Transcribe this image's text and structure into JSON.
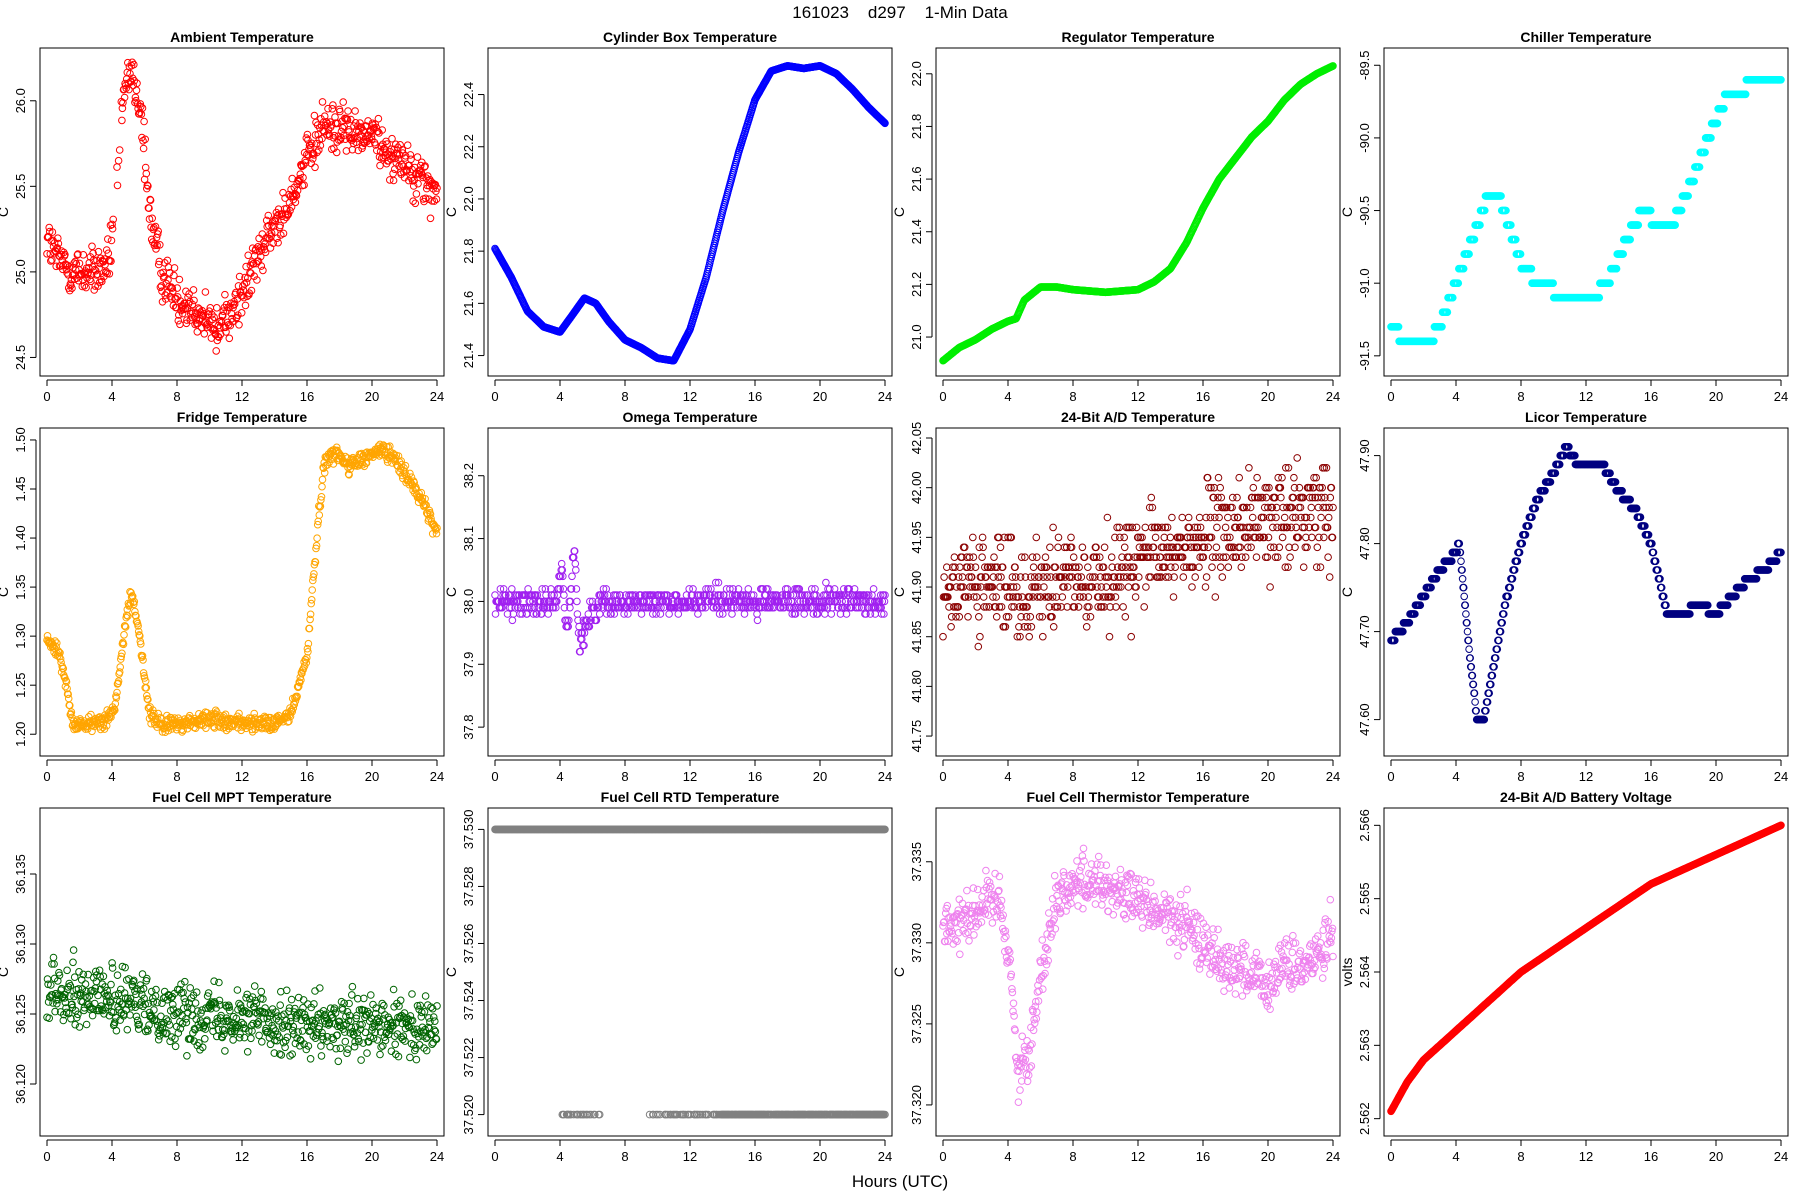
{
  "page": {
    "title": "161023    d297    1-Min Data",
    "xlabel": "Hours (UTC)"
  },
  "chart_data": [
    {
      "type": "scatter",
      "title": "Ambient Temperature",
      "ylabel": "C",
      "color": "#ff0000",
      "xlim": [
        0,
        24
      ],
      "ylim": [
        24.45,
        26.25
      ],
      "xticks": [
        0,
        4,
        8,
        12,
        16,
        20,
        24
      ],
      "yticks": [
        24.5,
        25.0,
        25.5,
        26.0
      ],
      "ytick_labels": [
        "24.5",
        "25.0",
        "25.5",
        "26.0"
      ],
      "noise": 0.1,
      "knots": [
        [
          0,
          25.2
        ],
        [
          0.5,
          25.1
        ],
        [
          1,
          25.05
        ],
        [
          1.5,
          25.0
        ],
        [
          2,
          25.0
        ],
        [
          3,
          25.0
        ],
        [
          3.8,
          25.05
        ],
        [
          4.1,
          25.3
        ],
        [
          4.6,
          25.9
        ],
        [
          4.9,
          26.1
        ],
        [
          5.2,
          26.15
        ],
        [
          5.6,
          26.0
        ],
        [
          5.9,
          25.8
        ],
        [
          6.4,
          25.3
        ],
        [
          7,
          25.0
        ],
        [
          8,
          24.85
        ],
        [
          9,
          24.8
        ],
        [
          10,
          24.7
        ],
        [
          10.5,
          24.65
        ],
        [
          11,
          24.75
        ],
        [
          12,
          24.85
        ],
        [
          13,
          25.1
        ],
        [
          14,
          25.25
        ],
        [
          15,
          25.45
        ],
        [
          16,
          25.65
        ],
        [
          17,
          25.85
        ],
        [
          18,
          25.85
        ],
        [
          19,
          25.8
        ],
        [
          20,
          25.8
        ],
        [
          21,
          25.7
        ],
        [
          22,
          25.65
        ],
        [
          23,
          25.55
        ],
        [
          24,
          25.45
        ]
      ],
      "gap": [
        4.1,
        4.7
      ]
    },
    {
      "type": "scatter",
      "title": "Cylinder Box Temperature",
      "ylabel": "C",
      "color": "#0000ff",
      "xlim": [
        0,
        24
      ],
      "ylim": [
        21.36,
        22.54
      ],
      "xticks": [
        0,
        4,
        8,
        12,
        16,
        20,
        24
      ],
      "yticks": [
        21.4,
        21.6,
        21.8,
        22.0,
        22.2,
        22.4
      ],
      "ytick_labels": [
        "21.4",
        "21.6",
        "21.8",
        "22.0",
        "22.2",
        "22.4"
      ],
      "noise": 0,
      "knots": [
        [
          0,
          21.81
        ],
        [
          1,
          21.7
        ],
        [
          2,
          21.57
        ],
        [
          3,
          21.51
        ],
        [
          4,
          21.49
        ],
        [
          4.7,
          21.55
        ],
        [
          5.5,
          21.62
        ],
        [
          6.2,
          21.6
        ],
        [
          7,
          21.53
        ],
        [
          8,
          21.46
        ],
        [
          9,
          21.43
        ],
        [
          10,
          21.39
        ],
        [
          11,
          21.38
        ],
        [
          12,
          21.5
        ],
        [
          13,
          21.7
        ],
        [
          14,
          21.95
        ],
        [
          15,
          22.18
        ],
        [
          16,
          22.38
        ],
        [
          17,
          22.49
        ],
        [
          18,
          22.51
        ],
        [
          19,
          22.5
        ],
        [
          20,
          22.51
        ],
        [
          21,
          22.48
        ],
        [
          22,
          22.42
        ],
        [
          23,
          22.35
        ],
        [
          24,
          22.29
        ]
      ]
    },
    {
      "type": "scatter",
      "title": "Regulator Temperature",
      "ylabel": "C",
      "color": "#00ee00",
      "xlim": [
        0,
        24
      ],
      "ylim": [
        20.89,
        22.06
      ],
      "xticks": [
        0,
        4,
        8,
        12,
        16,
        20,
        24
      ],
      "yticks": [
        21.0,
        21.2,
        21.4,
        21.6,
        21.8,
        22.0
      ],
      "ytick_labels": [
        "21.0",
        "21.2",
        "21.4",
        "21.6",
        "21.8",
        "22.0"
      ],
      "noise": 0,
      "knots": [
        [
          0,
          20.91
        ],
        [
          1,
          20.96
        ],
        [
          2,
          20.99
        ],
        [
          3,
          21.03
        ],
        [
          4,
          21.06
        ],
        [
          4.5,
          21.07
        ],
        [
          5,
          21.14
        ],
        [
          6,
          21.19
        ],
        [
          7,
          21.19
        ],
        [
          8,
          21.18
        ],
        [
          10,
          21.17
        ],
        [
          12,
          21.18
        ],
        [
          13,
          21.21
        ],
        [
          14,
          21.26
        ],
        [
          15,
          21.36
        ],
        [
          16,
          21.49
        ],
        [
          17,
          21.6
        ],
        [
          18,
          21.68
        ],
        [
          19,
          21.76
        ],
        [
          20,
          21.82
        ],
        [
          21,
          21.9
        ],
        [
          22,
          21.96
        ],
        [
          23,
          22.0
        ],
        [
          24,
          22.03
        ]
      ]
    },
    {
      "type": "scatter",
      "title": "Chiller Temperature",
      "ylabel": "C",
      "color": "#00ffff",
      "xlim": [
        0,
        24
      ],
      "ylim": [
        -91.57,
        -89.45
      ],
      "xticks": [
        0,
        4,
        8,
        12,
        16,
        20,
        24
      ],
      "yticks": [
        -91.5,
        -91.0,
        -90.5,
        -90.0,
        -89.5
      ],
      "ytick_labels": [
        "-91.5",
        "-91.0",
        "-90.5",
        "-90.0",
        "-89.5"
      ],
      "noise": 0,
      "quant": 0.1,
      "knots": [
        [
          0,
          -91.3
        ],
        [
          1,
          -91.4
        ],
        [
          2,
          -91.45
        ],
        [
          3,
          -91.3
        ],
        [
          4,
          -91.0
        ],
        [
          5,
          -90.7
        ],
        [
          5.8,
          -90.45
        ],
        [
          6.8,
          -90.45
        ],
        [
          8,
          -90.85
        ],
        [
          9,
          -91.0
        ],
        [
          10,
          -91.05
        ],
        [
          11,
          -91.1
        ],
        [
          12.5,
          -91.1
        ],
        [
          13.5,
          -90.95
        ],
        [
          14.5,
          -90.7
        ],
        [
          15.5,
          -90.5
        ],
        [
          16.5,
          -90.6
        ],
        [
          17.5,
          -90.55
        ],
        [
          18.5,
          -90.3
        ],
        [
          19.5,
          -90.0
        ],
        [
          20.5,
          -89.75
        ],
        [
          21.5,
          -89.7
        ],
        [
          22.5,
          -89.55
        ],
        [
          23.5,
          -89.65
        ],
        [
          24,
          -89.6
        ]
      ]
    },
    {
      "type": "scatter",
      "title": "Fridge Temperature",
      "ylabel": "C",
      "color": "#ffa500",
      "xlim": [
        0,
        24
      ],
      "ylim": [
        1.188,
        1.502
      ],
      "xticks": [
        0,
        4,
        8,
        12,
        16,
        20,
        24
      ],
      "yticks": [
        1.2,
        1.25,
        1.3,
        1.35,
        1.4,
        1.45,
        1.5
      ],
      "ytick_labels": [
        "1.20",
        "1.25",
        "1.30",
        "1.35",
        "1.40",
        "1.45",
        "1.50"
      ],
      "noise": 0.006,
      "knots": [
        [
          0,
          1.295
        ],
        [
          0.7,
          1.285
        ],
        [
          1.2,
          1.25
        ],
        [
          1.6,
          1.21
        ],
        [
          2.5,
          1.21
        ],
        [
          3.5,
          1.215
        ],
        [
          4.2,
          1.225
        ],
        [
          4.7,
          1.3
        ],
        [
          5.2,
          1.345
        ],
        [
          5.7,
          1.3
        ],
        [
          6.3,
          1.22
        ],
        [
          7,
          1.21
        ],
        [
          8,
          1.21
        ],
        [
          10,
          1.215
        ],
        [
          12,
          1.212
        ],
        [
          14,
          1.21
        ],
        [
          15,
          1.22
        ],
        [
          15.5,
          1.25
        ],
        [
          16,
          1.28
        ],
        [
          16.5,
          1.38
        ],
        [
          17,
          1.47
        ],
        [
          17.5,
          1.49
        ],
        [
          18.5,
          1.475
        ],
        [
          19.5,
          1.48
        ],
        [
          20.5,
          1.49
        ],
        [
          21.5,
          1.48
        ],
        [
          22.5,
          1.455
        ],
        [
          23.3,
          1.43
        ],
        [
          24,
          1.405
        ]
      ]
    },
    {
      "type": "scatter",
      "title": "Omega Temperature",
      "ylabel": "C",
      "color": "#a020f0",
      "xlim": [
        0,
        24
      ],
      "ylim": [
        37.77,
        38.26
      ],
      "xticks": [
        0,
        4,
        8,
        12,
        16,
        20,
        24
      ],
      "yticks": [
        37.8,
        37.9,
        38.0,
        38.1,
        38.2
      ],
      "ytick_labels": [
        "37.8",
        "37.9",
        "38.0",
        "38.1",
        "38.2"
      ],
      "noise": 0.015,
      "quant": 0.01,
      "knots": [
        [
          0,
          38.0
        ],
        [
          3,
          38.0
        ],
        [
          3.8,
          38.0
        ],
        [
          4.1,
          38.05
        ],
        [
          4.4,
          37.95
        ],
        [
          4.9,
          38.08
        ],
        [
          5.2,
          37.93
        ],
        [
          5.7,
          37.97
        ],
        [
          6.5,
          38.0
        ],
        [
          24,
          38.0
        ]
      ]
    },
    {
      "type": "scatter",
      "title": "24-Bit A/D Temperature",
      "ylabel": "C",
      "color": "#8b0000",
      "xlim": [
        0,
        24
      ],
      "ylim": [
        41.74,
        42.05
      ],
      "xticks": [
        0,
        4,
        8,
        12,
        16,
        20,
        24
      ],
      "yticks": [
        41.75,
        41.8,
        41.85,
        41.9,
        41.95,
        42.0,
        42.05
      ],
      "ytick_labels": [
        "41.75",
        "41.80",
        "41.85",
        "41.90",
        "41.95",
        "42.00",
        "42.05"
      ],
      "noise": 0.035,
      "quant": 0.01,
      "knots": [
        [
          0,
          41.9
        ],
        [
          6,
          41.9
        ],
        [
          10,
          41.91
        ],
        [
          14,
          41.935
        ],
        [
          18,
          41.96
        ],
        [
          24,
          41.98
        ]
      ]
    },
    {
      "type": "scatter",
      "title": "Licor Temperature",
      "ylabel": "C",
      "color": "#000080",
      "xlim": [
        0,
        24
      ],
      "ylim": [
        47.57,
        47.92
      ],
      "xticks": [
        0,
        4,
        8,
        12,
        16,
        20,
        24
      ],
      "yticks": [
        47.6,
        47.7,
        47.8,
        47.9
      ],
      "ytick_labels": [
        "47.60",
        "47.70",
        "47.80",
        "47.90"
      ],
      "noise": 0,
      "quant": 0.01,
      "knots": [
        [
          0,
          47.69
        ],
        [
          1,
          47.71
        ],
        [
          2,
          47.74
        ],
        [
          3,
          47.77
        ],
        [
          4,
          47.79
        ],
        [
          4.2,
          47.8
        ],
        [
          4.8,
          47.68
        ],
        [
          5.3,
          47.6
        ],
        [
          5.7,
          47.6
        ],
        [
          6.5,
          47.68
        ],
        [
          7,
          47.73
        ],
        [
          8,
          47.8
        ],
        [
          9,
          47.85
        ],
        [
          10,
          47.88
        ],
        [
          10.8,
          47.91
        ],
        [
          11.5,
          47.89
        ],
        [
          13,
          47.89
        ],
        [
          14,
          47.86
        ],
        [
          15,
          47.84
        ],
        [
          16,
          47.8
        ],
        [
          17,
          47.72
        ],
        [
          17.8,
          47.72
        ],
        [
          19,
          47.73
        ],
        [
          20,
          47.72
        ],
        [
          21,
          47.74
        ],
        [
          22,
          47.76
        ],
        [
          23,
          47.77
        ],
        [
          24,
          47.79
        ]
      ]
    },
    {
      "type": "scatter",
      "title": "Fuel Cell MPT Temperature",
      "ylabel": "C",
      "color": "#006400",
      "xlim": [
        0,
        24
      ],
      "ylim": [
        36.117,
        36.139
      ],
      "xticks": [
        0,
        4,
        8,
        12,
        16,
        20,
        24
      ],
      "yticks": [
        36.12,
        36.125,
        36.13,
        36.135
      ],
      "ytick_labels": [
        "36.120",
        "36.125",
        "36.130",
        "36.135"
      ],
      "noise": 0.0016,
      "knots": [
        [
          0,
          36.127
        ],
        [
          4,
          36.126
        ],
        [
          8,
          36.125
        ],
        [
          12,
          36.125
        ],
        [
          16,
          36.124
        ],
        [
          20,
          36.124
        ],
        [
          24,
          36.124
        ]
      ]
    },
    {
      "type": "scatter",
      "title": "Fuel Cell RTD Temperature",
      "ylabel": "C",
      "color": "#808080",
      "xlim": [
        0,
        24
      ],
      "ylim": [
        37.5196,
        37.5304
      ],
      "xticks": [
        0,
        4,
        8,
        12,
        16,
        20,
        24
      ],
      "yticks": [
        37.52,
        37.522,
        37.524,
        37.526,
        37.528,
        37.53
      ],
      "ytick_labels": [
        "37.520",
        "37.522",
        "37.524",
        "37.526",
        "37.528",
        "37.530"
      ],
      "levels": [
        37.53,
        37.52
      ],
      "level_rule": "upper all, lower after 4"
    },
    {
      "type": "scatter",
      "title": "Fuel Cell Thermistor Temperature",
      "ylabel": "C",
      "color": "#ee82ee",
      "xlim": [
        0,
        24
      ],
      "ylim": [
        37.3187,
        37.3377
      ],
      "xticks": [
        0,
        4,
        8,
        12,
        16,
        20,
        24
      ],
      "yticks": [
        37.32,
        37.325,
        37.33,
        37.335
      ],
      "ytick_labels": [
        "37.320",
        "37.325",
        "37.330",
        "37.335"
      ],
      "noise": 0.0012,
      "knots": [
        [
          0,
          37.331
        ],
        [
          2,
          37.332
        ],
        [
          3.5,
          37.333
        ],
        [
          4.2,
          37.328
        ],
        [
          4.6,
          37.322
        ],
        [
          5.3,
          37.323
        ],
        [
          6,
          37.328
        ],
        [
          7,
          37.333
        ],
        [
          9,
          37.334
        ],
        [
          11,
          37.333
        ],
        [
          13,
          37.332
        ],
        [
          15,
          37.331
        ],
        [
          17,
          37.329
        ],
        [
          19,
          37.328
        ],
        [
          20,
          37.327
        ],
        [
          21,
          37.329
        ],
        [
          22,
          37.328
        ],
        [
          24,
          37.331
        ]
      ]
    },
    {
      "type": "scatter",
      "title": "24-Bit A/D Battery Voltage",
      "ylabel": "volts",
      "color": "#ff0000",
      "xlim": [
        0,
        24
      ],
      "ylim": [
        2.5619,
        2.5661
      ],
      "xticks": [
        0,
        4,
        8,
        12,
        16,
        20,
        24
      ],
      "yticks": [
        2.562,
        2.563,
        2.564,
        2.565,
        2.566
      ],
      "ytick_labels": [
        "2.562",
        "2.563",
        "2.564",
        "2.565",
        "2.566"
      ],
      "noise": 0,
      "knots": [
        [
          0,
          2.5621
        ],
        [
          1,
          2.5625
        ],
        [
          2,
          2.5628
        ],
        [
          3,
          2.563
        ],
        [
          4,
          2.5632
        ],
        [
          5,
          2.5634
        ],
        [
          6,
          2.5636
        ],
        [
          7,
          2.5638
        ],
        [
          8,
          2.564
        ],
        [
          10,
          2.5643
        ],
        [
          12,
          2.5646
        ],
        [
          14,
          2.5649
        ],
        [
          16,
          2.5652
        ],
        [
          18,
          2.5654
        ],
        [
          20,
          2.5656
        ],
        [
          22,
          2.5658
        ],
        [
          24,
          2.566
        ]
      ],
      "marker": "filled"
    }
  ]
}
